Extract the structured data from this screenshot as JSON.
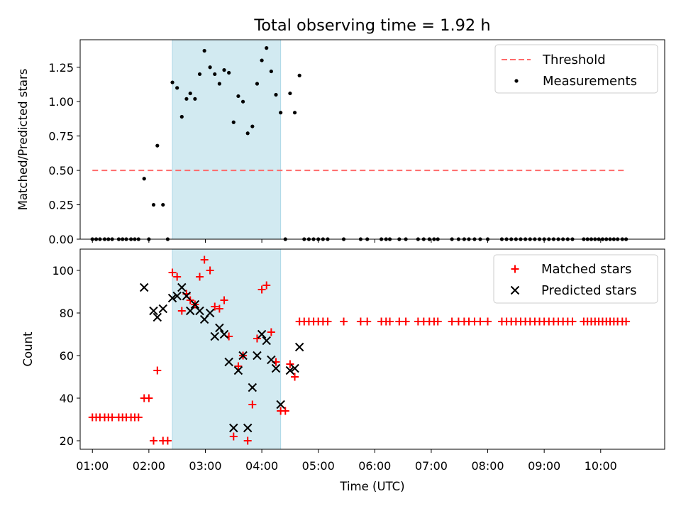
{
  "title": "Total observing time = 1.92 h",
  "colors": {
    "window": "#add8e6",
    "threshold": "#ff6b6b",
    "measurement": "#000000",
    "matched": "#ff0000",
    "predicted": "#000000"
  },
  "chart_data": [
    {
      "type": "scatter",
      "ylabel": "Matched/Predicted stars",
      "xlabel": "",
      "ylim": [
        0,
        1.45
      ],
      "xlim": [
        "00:47",
        "11:08"
      ],
      "y_ticks": [
        "0.00",
        "0.25",
        "0.50",
        "0.75",
        "1.00",
        "1.25"
      ],
      "x_tick_labels_shown": false,
      "grid": false,
      "legend_position": "top-right",
      "highlight_window": {
        "start": "02:25",
        "end": "04:20"
      },
      "threshold": {
        "name": "Threshold",
        "value": 0.5,
        "x_start": "01:00",
        "x_end": "10:27",
        "style": "dashed"
      },
      "series": [
        {
          "name": "Measurements",
          "marker": "dot",
          "points": [
            [
              "01:00",
              0
            ],
            [
              "01:04",
              0
            ],
            [
              "01:08",
              0
            ],
            [
              "01:13",
              0
            ],
            [
              "01:17",
              0
            ],
            [
              "01:21",
              0
            ],
            [
              "01:28",
              0
            ],
            [
              "01:32",
              0
            ],
            [
              "01:36",
              0
            ],
            [
              "01:41",
              0
            ],
            [
              "01:45",
              0
            ],
            [
              "01:49",
              0
            ],
            [
              "01:55",
              0.44
            ],
            [
              "02:00",
              0
            ],
            [
              "02:05",
              0.25
            ],
            [
              "02:09",
              0.68
            ],
            [
              "02:15",
              0.25
            ],
            [
              "02:20",
              0
            ],
            [
              "02:25",
              1.14
            ],
            [
              "02:30",
              1.1
            ],
            [
              "02:35",
              0.89
            ],
            [
              "02:40",
              1.02
            ],
            [
              "02:44",
              1.06
            ],
            [
              "02:49",
              1.02
            ],
            [
              "02:54",
              1.2
            ],
            [
              "02:59",
              1.37
            ],
            [
              "03:05",
              1.25
            ],
            [
              "03:10",
              1.2
            ],
            [
              "03:15",
              1.13
            ],
            [
              "03:20",
              1.23
            ],
            [
              "03:25",
              1.21
            ],
            [
              "03:30",
              0.85
            ],
            [
              "03:35",
              1.04
            ],
            [
              "03:40",
              1.0
            ],
            [
              "03:45",
              0.77
            ],
            [
              "03:50",
              0.82
            ],
            [
              "03:55",
              1.13
            ],
            [
              "04:00",
              1.3
            ],
            [
              "04:05",
              1.39
            ],
            [
              "04:10",
              1.22
            ],
            [
              "04:15",
              1.05
            ],
            [
              "04:20",
              0.92
            ],
            [
              "04:25",
              0
            ],
            [
              "04:30",
              1.06
            ],
            [
              "04:35",
              0.92
            ],
            [
              "04:40",
              1.19
            ],
            [
              "04:45",
              0
            ],
            [
              "04:50",
              0
            ],
            [
              "04:55",
              0
            ],
            [
              "05:00",
              0
            ],
            [
              "05:05",
              0
            ],
            [
              "05:10",
              0
            ],
            [
              "05:27",
              0
            ],
            [
              "05:45",
              0
            ],
            [
              "05:52",
              0
            ],
            [
              "06:07",
              0
            ],
            [
              "06:12",
              0
            ],
            [
              "06:16",
              0
            ],
            [
              "06:26",
              0
            ],
            [
              "06:33",
              0
            ],
            [
              "06:46",
              0
            ],
            [
              "06:52",
              0
            ],
            [
              "06:58",
              0
            ],
            [
              "07:03",
              0
            ],
            [
              "07:07",
              0
            ],
            [
              "07:22",
              0
            ],
            [
              "07:29",
              0
            ],
            [
              "07:35",
              0
            ],
            [
              "07:40",
              0
            ],
            [
              "07:46",
              0
            ],
            [
              "07:52",
              0
            ],
            [
              "08:00",
              0
            ],
            [
              "08:15",
              0
            ],
            [
              "08:20",
              0
            ],
            [
              "08:25",
              0
            ],
            [
              "08:30",
              0
            ],
            [
              "08:35",
              0
            ],
            [
              "08:40",
              0
            ],
            [
              "08:45",
              0
            ],
            [
              "08:50",
              0
            ],
            [
              "08:55",
              0
            ],
            [
              "09:00",
              0
            ],
            [
              "09:05",
              0
            ],
            [
              "09:10",
              0
            ],
            [
              "09:15",
              0
            ],
            [
              "09:20",
              0
            ],
            [
              "09:25",
              0
            ],
            [
              "09:30",
              0
            ],
            [
              "09:42",
              0
            ],
            [
              "09:46",
              0
            ],
            [
              "09:50",
              0
            ],
            [
              "09:54",
              0
            ],
            [
              "09:58",
              0
            ],
            [
              "10:02",
              0
            ],
            [
              "10:06",
              0
            ],
            [
              "10:10",
              0
            ],
            [
              "10:14",
              0
            ],
            [
              "10:18",
              0
            ],
            [
              "10:23",
              0
            ],
            [
              "10:27",
              0
            ]
          ]
        }
      ]
    },
    {
      "type": "scatter",
      "ylabel": "Count",
      "xlabel": "Time (UTC)",
      "ylim": [
        16,
        110
      ],
      "xlim": [
        "00:47",
        "11:08"
      ],
      "y_ticks": [
        "20",
        "40",
        "60",
        "80",
        "100"
      ],
      "x_ticks": [
        "01:00",
        "02:00",
        "03:00",
        "04:00",
        "05:00",
        "06:00",
        "07:00",
        "08:00",
        "09:00",
        "10:00"
      ],
      "grid": false,
      "legend_position": "top-right",
      "highlight_window": {
        "start": "02:25",
        "end": "04:20"
      },
      "series": [
        {
          "name": "Matched stars",
          "marker": "plus",
          "points": [
            [
              "01:00",
              31
            ],
            [
              "01:04",
              31
            ],
            [
              "01:08",
              31
            ],
            [
              "01:13",
              31
            ],
            [
              "01:17",
              31
            ],
            [
              "01:21",
              31
            ],
            [
              "01:28",
              31
            ],
            [
              "01:32",
              31
            ],
            [
              "01:36",
              31
            ],
            [
              "01:41",
              31
            ],
            [
              "01:45",
              31
            ],
            [
              "01:49",
              31
            ],
            [
              "01:55",
              40
            ],
            [
              "02:00",
              40
            ],
            [
              "02:05",
              20
            ],
            [
              "02:09",
              53
            ],
            [
              "02:15",
              20
            ],
            [
              "02:20",
              20
            ],
            [
              "02:25",
              99
            ],
            [
              "02:30",
              97
            ],
            [
              "02:35",
              81
            ],
            [
              "02:40",
              89
            ],
            [
              "02:44",
              86
            ],
            [
              "02:49",
              84
            ],
            [
              "02:54",
              97
            ],
            [
              "02:59",
              105
            ],
            [
              "03:05",
              100
            ],
            [
              "03:10",
              83
            ],
            [
              "03:15",
              82
            ],
            [
              "03:20",
              86
            ],
            [
              "03:25",
              69
            ],
            [
              "03:30",
              22
            ],
            [
              "03:35",
              55
            ],
            [
              "03:40",
              60
            ],
            [
              "03:45",
              20
            ],
            [
              "03:50",
              37
            ],
            [
              "03:55",
              68
            ],
            [
              "04:00",
              91
            ],
            [
              "04:05",
              93
            ],
            [
              "04:10",
              71
            ],
            [
              "04:15",
              57
            ],
            [
              "04:20",
              34
            ],
            [
              "04:25",
              34
            ],
            [
              "04:30",
              56
            ],
            [
              "04:35",
              50
            ],
            [
              "04:40",
              76
            ],
            [
              "04:45",
              76
            ],
            [
              "04:50",
              76
            ],
            [
              "04:55",
              76
            ],
            [
              "05:00",
              76
            ],
            [
              "05:05",
              76
            ],
            [
              "05:10",
              76
            ],
            [
              "05:27",
              76
            ],
            [
              "05:45",
              76
            ],
            [
              "05:52",
              76
            ],
            [
              "06:07",
              76
            ],
            [
              "06:12",
              76
            ],
            [
              "06:16",
              76
            ],
            [
              "06:26",
              76
            ],
            [
              "06:33",
              76
            ],
            [
              "06:46",
              76
            ],
            [
              "06:52",
              76
            ],
            [
              "06:58",
              76
            ],
            [
              "07:03",
              76
            ],
            [
              "07:07",
              76
            ],
            [
              "07:22",
              76
            ],
            [
              "07:29",
              76
            ],
            [
              "07:35",
              76
            ],
            [
              "07:40",
              76
            ],
            [
              "07:46",
              76
            ],
            [
              "07:52",
              76
            ],
            [
              "08:00",
              76
            ],
            [
              "08:15",
              76
            ],
            [
              "08:20",
              76
            ],
            [
              "08:25",
              76
            ],
            [
              "08:30",
              76
            ],
            [
              "08:35",
              76
            ],
            [
              "08:40",
              76
            ],
            [
              "08:45",
              76
            ],
            [
              "08:50",
              76
            ],
            [
              "08:55",
              76
            ],
            [
              "09:00",
              76
            ],
            [
              "09:05",
              76
            ],
            [
              "09:10",
              76
            ],
            [
              "09:15",
              76
            ],
            [
              "09:20",
              76
            ],
            [
              "09:25",
              76
            ],
            [
              "09:30",
              76
            ],
            [
              "09:42",
              76
            ],
            [
              "09:46",
              76
            ],
            [
              "09:50",
              76
            ],
            [
              "09:54",
              76
            ],
            [
              "09:58",
              76
            ],
            [
              "10:02",
              76
            ],
            [
              "10:06",
              76
            ],
            [
              "10:10",
              76
            ],
            [
              "10:14",
              76
            ],
            [
              "10:18",
              76
            ],
            [
              "10:23",
              76
            ],
            [
              "10:27",
              76
            ]
          ]
        },
        {
          "name": "Predicted stars",
          "marker": "cross",
          "points": [
            [
              "01:55",
              92
            ],
            [
              "02:05",
              81
            ],
            [
              "02:09",
              78
            ],
            [
              "02:15",
              82
            ],
            [
              "02:25",
              87
            ],
            [
              "02:30",
              88
            ],
            [
              "02:35",
              92
            ],
            [
              "02:40",
              88
            ],
            [
              "02:44",
              81
            ],
            [
              "02:49",
              84
            ],
            [
              "02:54",
              81
            ],
            [
              "02:59",
              77
            ],
            [
              "03:05",
              80
            ],
            [
              "03:10",
              69
            ],
            [
              "03:15",
              73
            ],
            [
              "03:20",
              70
            ],
            [
              "03:25",
              57
            ],
            [
              "03:30",
              26
            ],
            [
              "03:35",
              53
            ],
            [
              "03:40",
              60
            ],
            [
              "03:45",
              26
            ],
            [
              "03:50",
              45
            ],
            [
              "03:55",
              60
            ],
            [
              "04:00",
              70
            ],
            [
              "04:05",
              67
            ],
            [
              "04:10",
              58
            ],
            [
              "04:15",
              54
            ],
            [
              "04:20",
              37
            ],
            [
              "04:30",
              53
            ],
            [
              "04:35",
              54
            ],
            [
              "04:40",
              64
            ]
          ]
        }
      ]
    }
  ]
}
